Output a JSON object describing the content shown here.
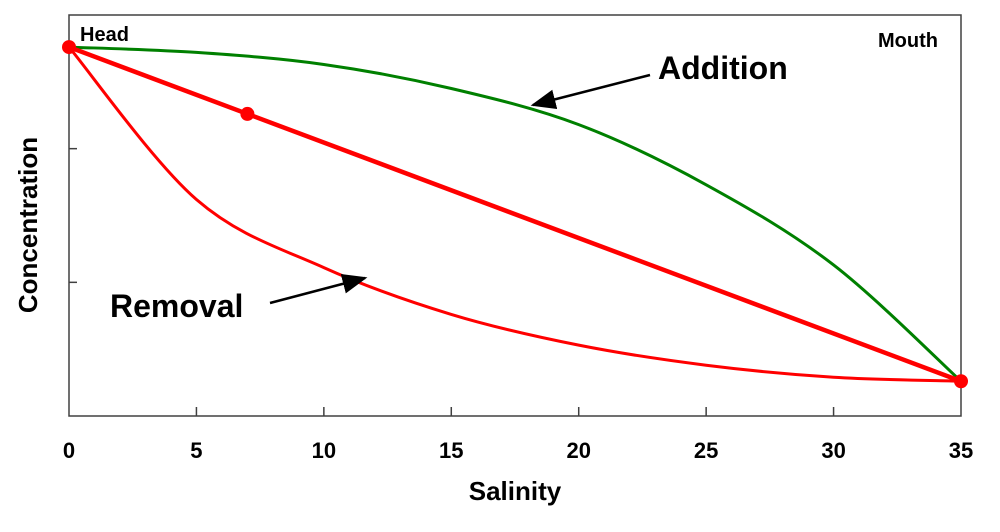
{
  "chart_data": {
    "type": "line",
    "title": "",
    "xlabel": "Salinity",
    "ylabel": "Concentration",
    "xlim": [
      0,
      35
    ],
    "ylim": [
      0,
      3
    ],
    "x_ticks": [
      0,
      5,
      10,
      15,
      20,
      25,
      30,
      35
    ],
    "y_ticks_unlabeled": [
      1,
      2
    ],
    "grid": false,
    "series": [
      {
        "key": "addition",
        "color": "#008000",
        "x": [
          0,
          5,
          10,
          15,
          20,
          25,
          30,
          35
        ],
        "y": [
          2.76,
          2.72,
          2.63,
          2.45,
          2.18,
          1.73,
          1.13,
          0.26
        ]
      },
      {
        "key": "mixing",
        "color": "#ff0000",
        "x": [
          0,
          35
        ],
        "y": [
          2.76,
          0.26
        ]
      },
      {
        "key": "removal",
        "color": "#ff0000",
        "x": [
          0,
          5,
          10,
          15,
          20,
          25,
          30,
          35
        ],
        "y": [
          2.76,
          1.62,
          1.11,
          0.76,
          0.53,
          0.38,
          0.29,
          0.26
        ]
      }
    ],
    "points": [
      {
        "x": 0,
        "y": 2.76,
        "color": "#ff0000"
      },
      {
        "x": 7,
        "y": 2.26,
        "color": "#ff0000"
      },
      {
        "x": 35,
        "y": 0.26,
        "color": "#ff0000"
      }
    ],
    "annotations": {
      "head": "Head",
      "mouth": "Mouth",
      "addition": "Addition",
      "removal": "Removal"
    }
  }
}
